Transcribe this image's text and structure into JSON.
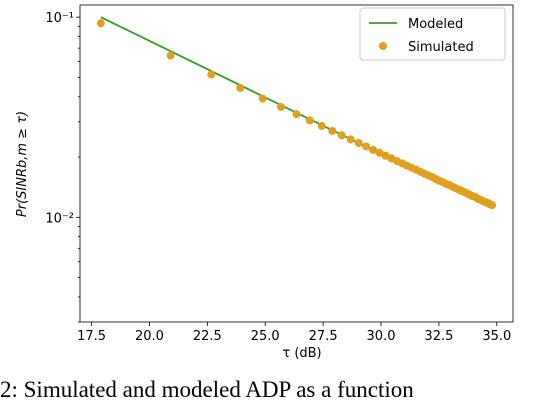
{
  "chart_data": {
    "type": "line_scatter",
    "xlabel": "τ (dB)",
    "ylabel": "Pr(SINRb,m ≥ τ)",
    "caption": "2: Simulated and modeled ADP as a function",
    "xlim": [
      17.0,
      35.7
    ],
    "ylim": [
      0.003,
      0.115
    ],
    "yscale": "log",
    "xticks": [
      17.5,
      {
        "value": 20,
        "label": "20.0"
      },
      22.5,
      {
        "value": 25,
        "label": "25.0"
      },
      27.5,
      {
        "value": 30,
        "label": "30.0"
      },
      32.5,
      {
        "value": 35,
        "label": "35.0"
      }
    ],
    "yticks": [
      {
        "value": 0.01,
        "label": "10⁻²"
      },
      {
        "value": 0.1,
        "label": "10⁻¹"
      }
    ],
    "legend": "upper right",
    "series": [
      {
        "name": "Modeled",
        "kind": "line",
        "color": "#3a9a2a",
        "x": [
          17.9,
          34.8
        ],
        "values": [
          0.1,
          0.0111
        ]
      },
      {
        "name": "Simulated",
        "kind": "scatter",
        "color": "#dfa020",
        "x": [
          17.9,
          20.91,
          22.67,
          23.92,
          24.89,
          25.68,
          26.35,
          26.93,
          27.44,
          27.9,
          28.31,
          28.69,
          29.04,
          29.36,
          29.66,
          29.94,
          30.2,
          30.45,
          30.69,
          30.91,
          31.12,
          31.32,
          31.52,
          31.7,
          31.88,
          32.05,
          32.21,
          32.37,
          32.52,
          32.67,
          32.81,
          32.95,
          33.09,
          33.21,
          33.34,
          33.46,
          33.58,
          33.7,
          33.81,
          33.92,
          34.03,
          34.13,
          34.23,
          34.33,
          34.43,
          34.53,
          34.62,
          34.71,
          34.8
        ],
        "values": [
          0.0933,
          0.0643,
          0.0517,
          0.0443,
          0.0392,
          0.0356,
          0.0328,
          0.0305,
          0.0286,
          0.027,
          0.0257,
          0.0245,
          0.0235,
          0.0226,
          0.0217,
          0.021,
          0.0203,
          0.0197,
          0.0191,
          0.0186,
          0.0181,
          0.0177,
          0.0173,
          0.0169,
          0.0165,
          0.0162,
          0.0159,
          0.0155,
          0.0152,
          0.015,
          0.0147,
          0.0145,
          0.0142,
          0.014,
          0.0138,
          0.0136,
          0.0134,
          0.0132,
          0.013,
          0.0128,
          0.0127,
          0.0125,
          0.0123,
          0.0122,
          0.012,
          0.0119,
          0.0118,
          0.0116,
          0.0115
        ]
      }
    ]
  }
}
